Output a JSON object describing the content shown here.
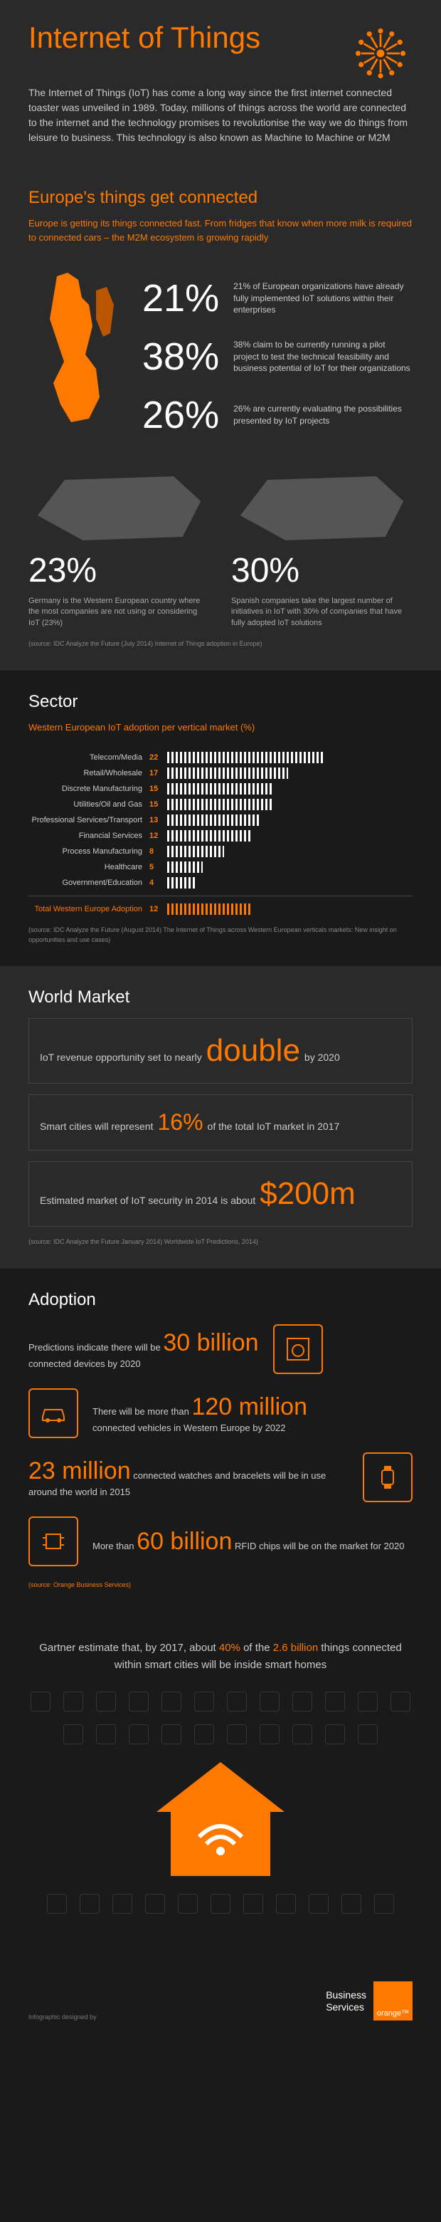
{
  "header": {
    "title": "Internet of Things",
    "intro": "The Internet of Things (IoT) has come a long way since the first internet connected toaster was unveiled in 1989. Today, millions of things across the world are connected to the internet and the technology promises to revolutionise the way we do things from leisure to business. This technology is also known as Machine to Machine or M2M"
  },
  "europe": {
    "heading": "Europe's things get connected",
    "subtitle": "Europe is getting its things connected fast. From fridges that know when more milk is required to connected cars – the M2M ecosystem is growing rapidly",
    "stats": [
      {
        "pct": "21%",
        "desc": "21% of European organizations have already fully implemented IoT solutions within their enterprises"
      },
      {
        "pct": "38%",
        "desc": "38% claim to be currently running a pilot project to test the technical feasibility and business potential of IoT for their organizations"
      },
      {
        "pct": "26%",
        "desc": "26% are currently evaluating the possibilities presented by IoT projects"
      }
    ],
    "countries": [
      {
        "pct": "23%",
        "desc": "Germany is the Western European country where the most companies are not using or considering IoT (23%)"
      },
      {
        "pct": "30%",
        "desc": "Spanish companies take the largest number of initiatives in IoT with 30% of companies that have fully adopted IoT solutions"
      }
    ],
    "source": "(source: IDC Analyze the Future (July 2014) Internet of Things adoption in Europe)"
  },
  "sector": {
    "heading": "Sector",
    "subtitle": "Western European IoT adoption per vertical market (%)",
    "rows": [
      {
        "label": "Telecom/Media",
        "val": 22
      },
      {
        "label": "Retail/Wholesale",
        "val": 17
      },
      {
        "label": "Discrete Manufacturing",
        "val": 15
      },
      {
        "label": "Utilities/Oil and Gas",
        "val": 15
      },
      {
        "label": "Professional Services/Transport",
        "val": 13
      },
      {
        "label": "Financial Services",
        "val": 12
      },
      {
        "label": "Process Manufacturing",
        "val": 8
      },
      {
        "label": "Healthcare",
        "val": 5
      },
      {
        "label": "Government/Education",
        "val": 4
      }
    ],
    "total_label": "Total Western Europe Adoption",
    "total_val": 12,
    "source": "(source: IDC Analyze the Future (August 2014) The Internet of Things across Western European verticals markets: New insight on opportunities and use cases)"
  },
  "world": {
    "heading": "World Market",
    "items": [
      {
        "pre": "IoT revenue opportunity set to nearly",
        "big": "double",
        "post": "by 2020"
      },
      {
        "pre": "Smart cities will represent",
        "big": "16%",
        "post": "of the total IoT market in 2017"
      },
      {
        "pre": "Estimated market of IoT security in 2014 is about",
        "big": "$200m",
        "post": ""
      }
    ],
    "source": "(source: IDC Analyze the Future January 2014) Worldwide IoT Predictions, 2014)"
  },
  "adoption": {
    "heading": "Adoption",
    "items": [
      {
        "pre": "Predictions indicate there will be",
        "big": "30 billion",
        "post": "connected devices by 2020"
      },
      {
        "pre": "There will be more than",
        "big": "120 million",
        "post": "connected vehicles in Western Europe by 2022"
      },
      {
        "big": "23 million",
        "post": "connected watches and bracelets will be in use around the world in 2015"
      },
      {
        "pre": "More than",
        "big": "60 billion",
        "post": "RFID chips will be on the market for 2020"
      }
    ],
    "source": "(source: Orange Business Services)"
  },
  "gartner": {
    "pre": "Gartner estimate that, by 2017, about ",
    "hl1": "40%",
    "mid": " of the ",
    "hl2": "2.6 billion",
    "post": " things connected within smart cities will be inside smart homes"
  },
  "footer": {
    "credit": "Infographic designed by",
    "biz1": "Business",
    "biz2": "Services",
    "logo": "orange™"
  },
  "colors": {
    "orange": "#ff7900",
    "dark": "#2a2a2a",
    "darker": "#1a1a1a"
  }
}
